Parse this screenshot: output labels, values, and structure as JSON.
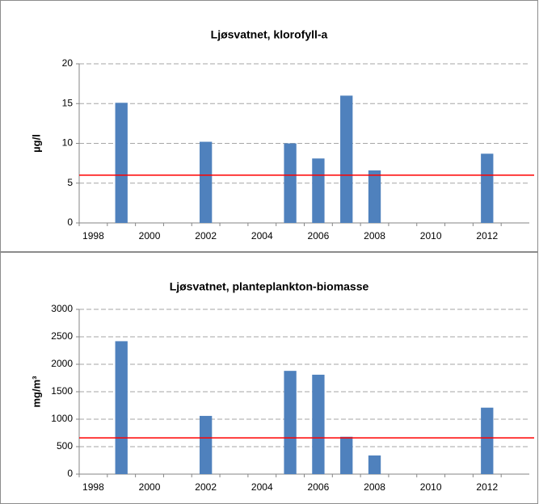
{
  "chart_data": [
    {
      "type": "bar",
      "title": "Ljøsvatnet, klorofyll-a",
      "y_label": "µg/l",
      "categories": [
        "1998",
        null,
        "2000",
        null,
        "2002",
        null,
        "2004",
        null,
        "2006",
        null,
        "2008",
        null,
        "2010",
        null,
        "2012",
        null
      ],
      "values": [
        null,
        15.1,
        null,
        null,
        10.2,
        null,
        null,
        10.0,
        8.1,
        16.0,
        6.6,
        null,
        null,
        null,
        8.7,
        null
      ],
      "color": "#4f81bd",
      "ylim": [
        0,
        20
      ],
      "yticks": [
        0,
        5,
        10,
        15,
        20
      ],
      "grid": true,
      "reference_line": {
        "value": 6,
        "color": "#ff0000"
      }
    },
    {
      "type": "bar",
      "title": "Ljøsvatnet, planteplankton-biomasse",
      "y_label": "mg/m³",
      "categories": [
        "1998",
        null,
        "2000",
        null,
        "2002",
        null,
        "2004",
        null,
        "2006",
        null,
        "2008",
        null,
        "2010",
        null,
        "2012",
        null
      ],
      "values": [
        null,
        2420,
        null,
        null,
        1060,
        null,
        null,
        1880,
        1810,
        680,
        340,
        null,
        null,
        null,
        1210,
        null
      ],
      "color": "#4f81bd",
      "ylim": [
        0,
        3000
      ],
      "yticks": [
        0,
        500,
        1000,
        1500,
        2000,
        2500,
        3000
      ],
      "grid": true,
      "reference_line": {
        "value": 660,
        "color": "#ff0000"
      }
    }
  ]
}
